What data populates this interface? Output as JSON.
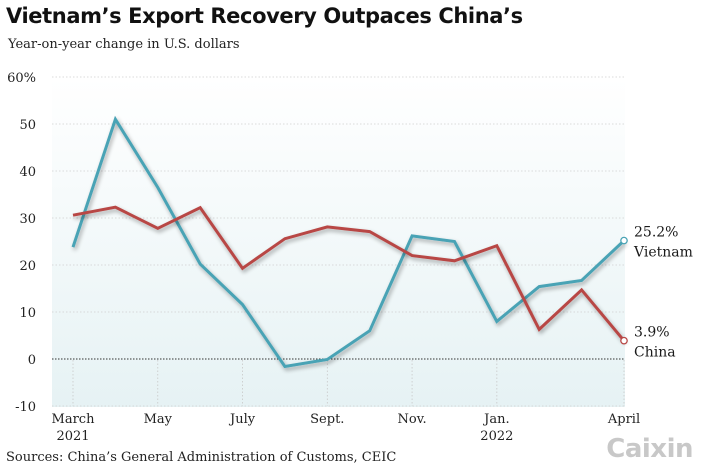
{
  "header": {
    "title": "Vietnam’s Export Recovery Outpaces China’s",
    "subtitle": "Year-on-year change in U.S. dollars"
  },
  "footer": {
    "source": "Sources: China’s General Administration of Customs, CEIC",
    "logo": "Caixin"
  },
  "colors": {
    "vietnam": "#4aa3b5",
    "china": "#b84745",
    "plot_background": "#eef6f7"
  },
  "chart_data": {
    "type": "line",
    "title": "Vietnam’s Export Recovery Outpaces China’s",
    "subtitle": "Year-on-year change in U.S. dollars",
    "ylim": [
      -10,
      60
    ],
    "y_ticks": [
      "-10",
      "0",
      "10",
      "20",
      "30",
      "40",
      "50",
      "60%"
    ],
    "y_tick_values": [
      -10,
      0,
      10,
      20,
      30,
      40,
      50,
      60
    ],
    "x": [
      "March 2021",
      "April 2021",
      "May 2021",
      "June 2021",
      "July 2021",
      "August 2021",
      "Sept. 2021",
      "Oct. 2021",
      "Nov. 2021",
      "Dec. 2021",
      "Jan. 2022",
      "Feb. 2022",
      "March 2022",
      "April 2022"
    ],
    "x_tick_labels": [
      {
        "index": 0,
        "lines": [
          "March",
          "2021"
        ]
      },
      {
        "index": 2,
        "lines": [
          "May"
        ]
      },
      {
        "index": 4,
        "lines": [
          "July"
        ]
      },
      {
        "index": 6,
        "lines": [
          "Sept."
        ]
      },
      {
        "index": 8,
        "lines": [
          "Nov."
        ]
      },
      {
        "index": 10,
        "lines": [
          "Jan.",
          "2022"
        ]
      },
      {
        "index": 13,
        "lines": [
          "April"
        ]
      }
    ],
    "grid": "horizontal",
    "series": [
      {
        "name": "Vietnam",
        "color": "#4aa3b5",
        "values": [
          23.8,
          51.0,
          36.5,
          20.2,
          11.6,
          -1.6,
          -0.1,
          6.0,
          26.2,
          25.0,
          8.0,
          15.4,
          16.7,
          25.2
        ],
        "end_label_value": "25.2%",
        "end_label_name": "Vietnam"
      },
      {
        "name": "China",
        "color": "#b84745",
        "values": [
          30.6,
          32.3,
          27.8,
          32.2,
          19.3,
          25.6,
          28.1,
          27.1,
          22.0,
          20.9,
          24.1,
          6.3,
          14.7,
          3.9
        ],
        "end_label_value": "3.9%",
        "end_label_name": "China"
      }
    ]
  }
}
